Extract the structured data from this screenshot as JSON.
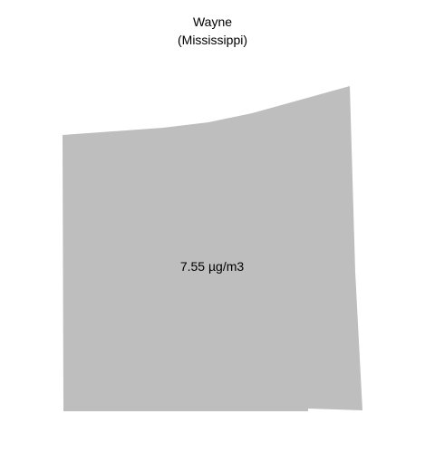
{
  "map": {
    "county": "Wayne",
    "state": "(Mississippi)",
    "value_label": "7.55 µg/m3",
    "fill_color": "#bebebe",
    "background_color": "#ffffff"
  }
}
